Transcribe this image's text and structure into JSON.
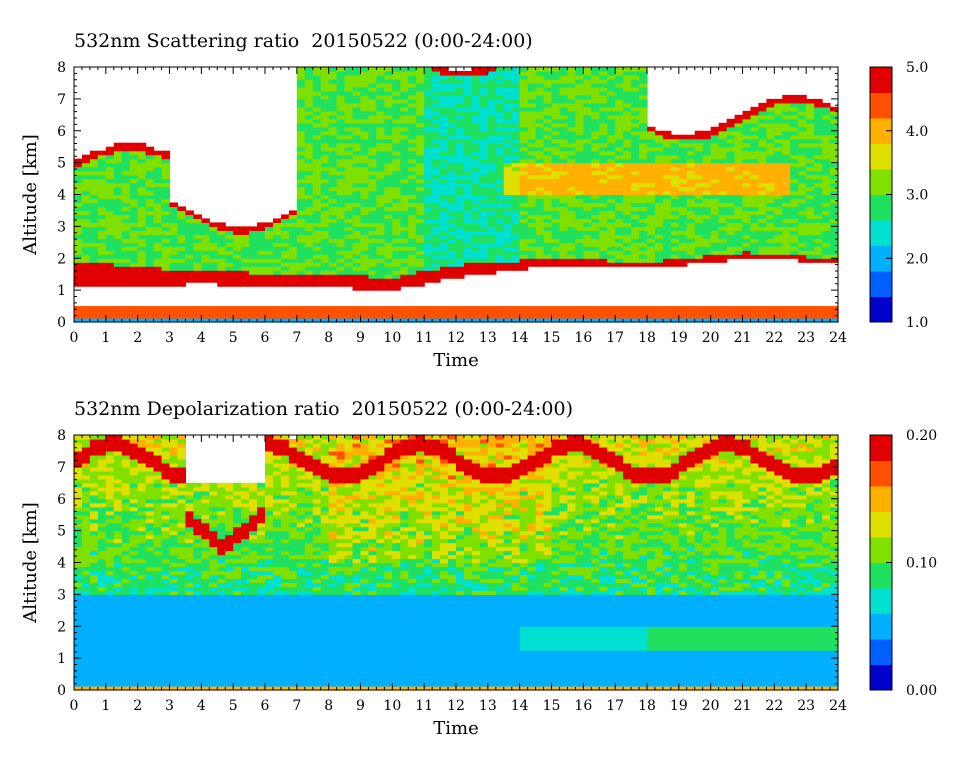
{
  "chart_data": [
    {
      "type": "heatmap",
      "title": "532nm Scattering ratio  20150522 (0:00-24:00)",
      "xlabel": "Time",
      "ylabel": "Altitude [km]",
      "xlim": [
        0,
        24
      ],
      "ylim": [
        0,
        8
      ],
      "xticks": [
        "0",
        "1",
        "2",
        "3",
        "4",
        "5",
        "6",
        "7",
        "8",
        "9",
        "10",
        "11",
        "12",
        "13",
        "14",
        "15",
        "16",
        "17",
        "18",
        "19",
        "20",
        "21",
        "22",
        "23",
        "24"
      ],
      "yticks": [
        "0",
        "1",
        "2",
        "3",
        "4",
        "5",
        "6",
        "7",
        "8"
      ],
      "colorbar": {
        "range": [
          1.0,
          5.0
        ],
        "ticks": [
          "1.0",
          "2.0",
          "3.0",
          "4.0",
          "5.0"
        ]
      },
      "features": {
        "surface_layer_km": [
          0.1,
          0.5
        ],
        "pbl_top_km": [
          {
            "t": 0,
            "bottom": 1.1,
            "top": 1.9
          },
          {
            "t": 4,
            "bottom": 1.2,
            "top": 1.6
          },
          {
            "t": 8,
            "bottom": 1.1,
            "top": 1.5
          },
          {
            "t": 10,
            "bottom": 1.0,
            "top": 1.4
          },
          {
            "t": 12,
            "bottom": 1.4,
            "top": 1.8
          },
          {
            "t": 15,
            "bottom": 1.8,
            "top": 2.0
          },
          {
            "t": 18,
            "bottom": 1.7,
            "top": 1.9
          },
          {
            "t": 21,
            "bottom": 2.0,
            "top": 2.2
          },
          {
            "t": 24,
            "bottom": 1.9,
            "top": 2.0
          }
        ],
        "elevated_layer": {
          "t_start": 13.5,
          "t_end": 22.5,
          "alt_km": [
            4.0,
            5.0
          ],
          "value": 4.3
        }
      }
    },
    {
      "type": "heatmap",
      "title": "532nm Depolarization ratio  20150522 (0:00-24:00)",
      "xlabel": "Time",
      "ylabel": "Altitude [km]",
      "xlim": [
        0,
        24
      ],
      "ylim": [
        0,
        8
      ],
      "xticks": [
        "0",
        "1",
        "2",
        "3",
        "4",
        "5",
        "6",
        "7",
        "8",
        "9",
        "10",
        "11",
        "12",
        "13",
        "14",
        "15",
        "16",
        "17",
        "18",
        "19",
        "20",
        "21",
        "22",
        "23",
        "24"
      ],
      "yticks": [
        "0",
        "1",
        "2",
        "3",
        "4",
        "5",
        "6",
        "7",
        "8"
      ],
      "colorbar": {
        "range": [
          0.0,
          0.2
        ],
        "ticks": [
          "0.00",
          "0.10",
          "0.20"
        ]
      },
      "features": {
        "low_layer": {
          "alt_km": [
            0,
            3
          ],
          "value": 0.03
        },
        "dust_layer": {
          "t_start": 18,
          "t_end": 24,
          "alt_km": [
            1.2,
            2.0
          ],
          "value": 0.085
        },
        "cloud_edges_value": 0.19
      }
    }
  ],
  "colors": {
    "colormap": [
      "#0000cc",
      "#0060ff",
      "#00b0ff",
      "#00e0d0",
      "#20e060",
      "#80e000",
      "#e0e000",
      "#ffb000",
      "#ff5000",
      "#e00000"
    ],
    "no_data": "#ffffff"
  }
}
